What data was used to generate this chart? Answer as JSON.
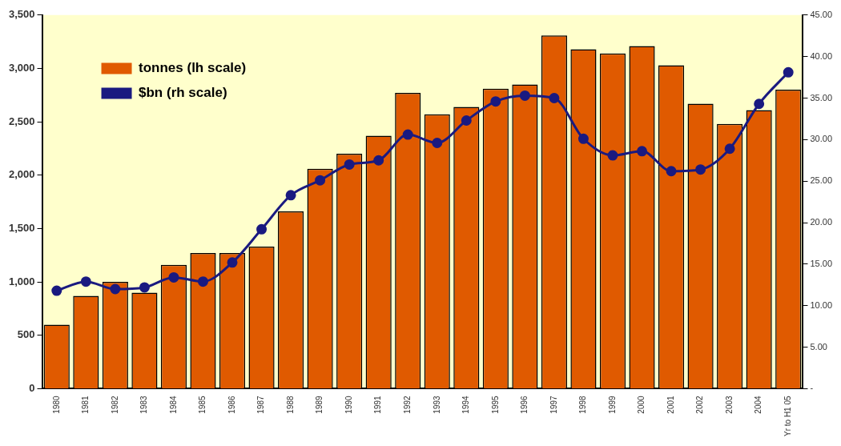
{
  "chart_data": {
    "type": "bar",
    "categories": [
      "1980",
      "1981",
      "1982",
      "1983",
      "1984",
      "1985",
      "1986",
      "1987",
      "1988",
      "1989",
      "1990",
      "1991",
      "1992",
      "1993",
      "1994",
      "1995",
      "1996",
      "1997",
      "1998",
      "1999",
      "2000",
      "2001",
      "2002",
      "2003",
      "2004",
      "Yr to H1 05"
    ],
    "series": [
      {
        "name": "tonnes (lh scale)",
        "color": "#e05a00",
        "values": [
          600,
          870,
          1000,
          900,
          1160,
          1270,
          1270,
          1330,
          1660,
          2060,
          2200,
          2370,
          2770,
          2570,
          2640,
          2810,
          2850,
          3310,
          3180,
          3140,
          3210,
          3030,
          2670,
          2480,
          2610,
          2800
        ]
      },
      {
        "name": "$bn (rh scale)",
        "type": "line",
        "axis": "y2",
        "color": "#1a1a80",
        "values": [
          11.8,
          12.9,
          12.0,
          12.2,
          13.4,
          12.9,
          15.2,
          19.2,
          23.3,
          25.1,
          27.0,
          27.5,
          30.6,
          29.6,
          32.3,
          34.6,
          35.3,
          35.0,
          30.1,
          28.1,
          28.6,
          26.2,
          26.4,
          28.9,
          34.3,
          38.1
        ]
      }
    ],
    "ylim": [
      0,
      3500
    ],
    "yticks": [
      {
        "value": 0,
        "label": "0"
      },
      {
        "value": 500,
        "label": "500"
      },
      {
        "value": 1000,
        "label": "1,000"
      },
      {
        "value": 1500,
        "label": "1,500"
      },
      {
        "value": 2000,
        "label": "2,000"
      },
      {
        "value": 2500,
        "label": "2,500"
      },
      {
        "value": 3000,
        "label": "3,000"
      },
      {
        "value": 3500,
        "label": "3,500"
      }
    ],
    "y2lim": [
      0,
      45
    ],
    "y2ticks": [
      {
        "value": 0,
        "label": "-"
      },
      {
        "value": 5,
        "label": "5.00"
      },
      {
        "value": 10,
        "label": "10.00"
      },
      {
        "value": 15,
        "label": "15.00"
      },
      {
        "value": 20,
        "label": "20.00"
      },
      {
        "value": 25,
        "label": "25.00"
      },
      {
        "value": 30,
        "label": "30.00"
      },
      {
        "value": 35,
        "label": "35.00"
      },
      {
        "value": 40,
        "label": "40.00"
      },
      {
        "value": 45,
        "label": "45.00"
      }
    ],
    "bands": [
      {
        "axis": "y",
        "from": 0,
        "to": 3500,
        "color": "#ffffcc"
      }
    ],
    "grid": false,
    "legend": "top left",
    "marker": "circle"
  }
}
